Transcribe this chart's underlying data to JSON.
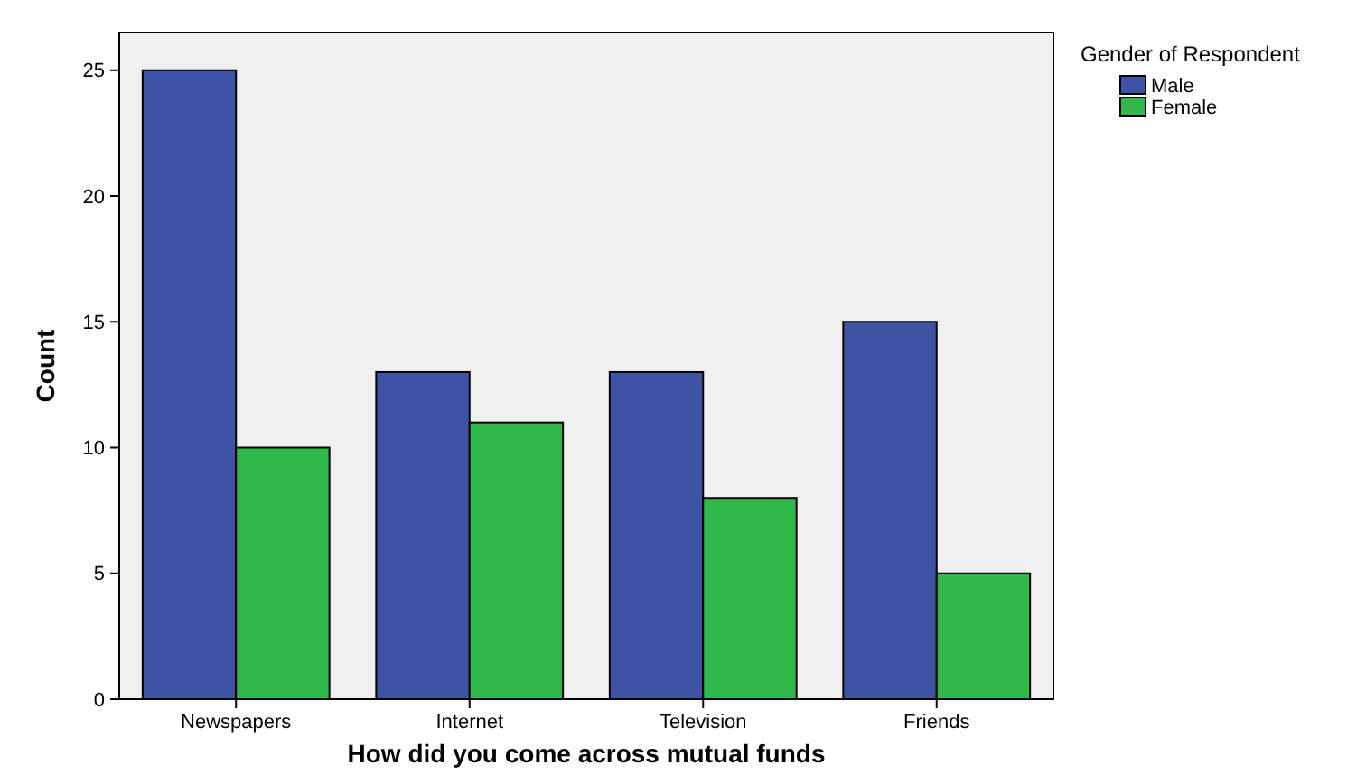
{
  "chart_data": {
    "type": "bar",
    "xlabel": "How did you come across mutual funds",
    "ylabel": "Count",
    "legend_title": "Gender of Respondent",
    "categories": [
      "Newspapers",
      "Internet",
      "Television",
      "Friends"
    ],
    "series": [
      {
        "name": "Male",
        "color": "#3e53a4",
        "values": [
          25,
          13,
          13,
          15
        ]
      },
      {
        "name": "Female",
        "color": "#30b94a",
        "values": [
          10,
          11,
          8,
          5
        ]
      }
    ],
    "ylim": [
      0,
      26.5
    ],
    "yticks": [
      0,
      5,
      10,
      15,
      20,
      25
    ],
    "grid": false,
    "legend": "top right"
  }
}
